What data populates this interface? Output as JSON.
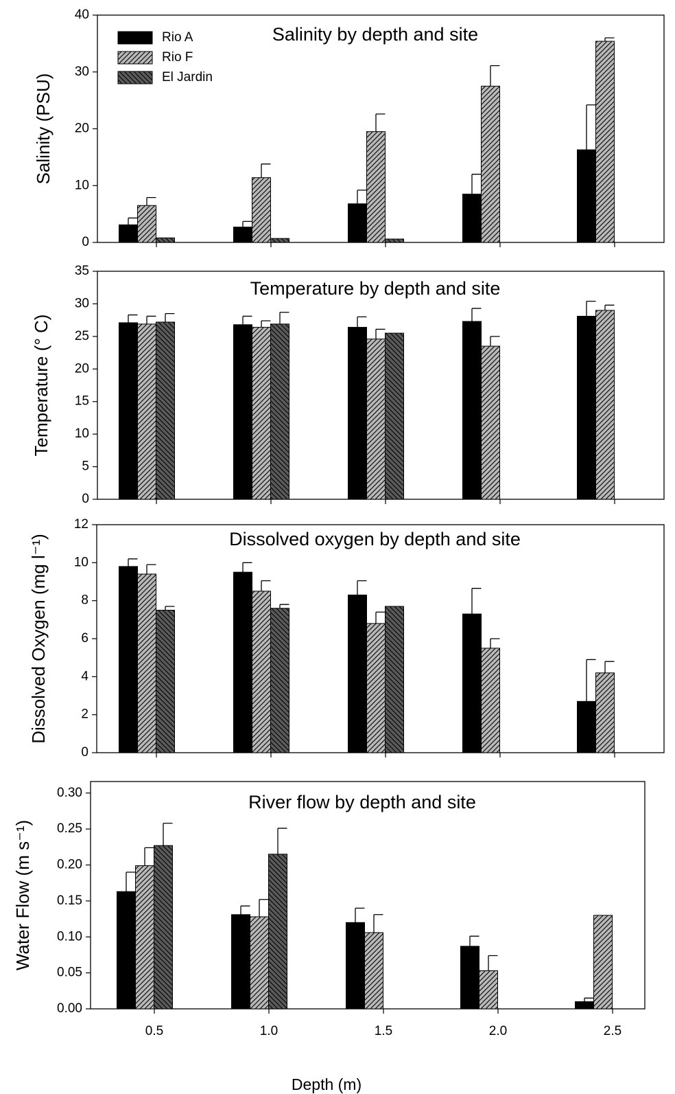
{
  "chart_data": [
    {
      "type": "bar",
      "title": "Salinity by depth and site",
      "ylabel": "Salinity (PSU)",
      "categories": [
        null,
        null,
        null,
        null,
        null
      ],
      "series": [
        {
          "name": "Rio A",
          "color": "#000000",
          "hatch": "none",
          "values": [
            3.1,
            2.7,
            6.8,
            8.5,
            16.3
          ],
          "errors": [
            1.2,
            1.0,
            2.4,
            3.5,
            7.9
          ]
        },
        {
          "name": "Rio F",
          "color": "#b8b8b8",
          "hatch": "/",
          "values": [
            6.5,
            11.4,
            19.5,
            27.5,
            35.4
          ],
          "errors": [
            1.4,
            2.4,
            3.1,
            3.6,
            0.6
          ]
        },
        {
          "name": "El Jardin",
          "color": "#5a5a5a",
          "hatch": "\\",
          "values": [
            0.8,
            0.7,
            0.6,
            null,
            null
          ],
          "errors": [
            null,
            null,
            null,
            null,
            null
          ]
        }
      ],
      "ylim": [
        0,
        40
      ],
      "yticks": [
        0,
        10,
        20,
        30,
        40
      ],
      "legend": "upper left"
    },
    {
      "type": "bar",
      "title": "Temperature by depth and site",
      "ylabel": "Temperature (° C)",
      "categories": [
        null,
        null,
        null,
        null,
        null
      ],
      "series": [
        {
          "color": "#000000",
          "hatch": "none",
          "values": [
            27.1,
            26.8,
            26.4,
            27.3,
            28.1
          ],
          "errors": [
            1.2,
            1.3,
            1.6,
            2.0,
            2.3
          ]
        },
        {
          "color": "#b8b8b8",
          "hatch": "/",
          "values": [
            26.9,
            26.4,
            24.6,
            23.5,
            29.0
          ],
          "errors": [
            1.2,
            1.0,
            1.5,
            1.5,
            0.8
          ]
        },
        {
          "color": "#5a5a5a",
          "hatch": "\\",
          "values": [
            27.2,
            26.9,
            25.5,
            null,
            null
          ],
          "errors": [
            1.3,
            1.8,
            null,
            null,
            null
          ]
        }
      ],
      "ylim": [
        0,
        35
      ],
      "yticks": [
        0,
        5,
        10,
        15,
        20,
        25,
        30,
        35
      ]
    },
    {
      "type": "bar",
      "title": "Dissolved oxygen by depth and site",
      "ylabel": "Dissolved Oxygen (mg l⁻¹)",
      "categories": [
        null,
        null,
        null,
        null,
        null
      ],
      "series": [
        {
          "color": "#000000",
          "hatch": "none",
          "values": [
            9.8,
            9.5,
            8.3,
            7.3,
            2.7
          ],
          "errors": [
            0.4,
            0.5,
            0.75,
            1.35,
            2.2
          ]
        },
        {
          "color": "#b8b8b8",
          "hatch": "/",
          "values": [
            9.4,
            8.5,
            6.8,
            5.5,
            4.2
          ],
          "errors": [
            0.5,
            0.55,
            0.6,
            0.5,
            0.6
          ]
        },
        {
          "color": "#5a5a5a",
          "hatch": "\\",
          "values": [
            7.5,
            7.6,
            7.7,
            null,
            null
          ],
          "errors": [
            0.2,
            0.2,
            null,
            null,
            null
          ]
        }
      ],
      "ylim": [
        0,
        12
      ],
      "yticks": [
        0,
        2,
        4,
        6,
        8,
        10,
        12
      ]
    },
    {
      "type": "bar",
      "title": "River flow by depth and site",
      "ylabel": "Water Flow (m s⁻¹)",
      "xlabel": "Depth (m)",
      "categories": [
        "0.5",
        "1.0",
        "1.5",
        "2.0",
        "2.5"
      ],
      "series": [
        {
          "color": "#000000",
          "hatch": "none",
          "values": [
            0.163,
            0.131,
            0.12,
            0.087,
            0.01
          ],
          "errors": [
            0.027,
            0.012,
            0.02,
            0.014,
            0.005
          ]
        },
        {
          "color": "#b8b8b8",
          "hatch": "/",
          "values": [
            0.199,
            0.128,
            0.106,
            0.053,
            0.13
          ],
          "errors": [
            0.025,
            0.024,
            0.025,
            0.021,
            null
          ]
        },
        {
          "color": "#5a5a5a",
          "hatch": "\\",
          "values": [
            0.227,
            0.215,
            null,
            null,
            null
          ],
          "errors": [
            0.031,
            0.036,
            null,
            null,
            null
          ]
        }
      ],
      "ylim": [
        0,
        0.316
      ],
      "yticks": [
        {
          "value": 0,
          "label": "0.00"
        },
        {
          "value": 0.05,
          "label": "0.05"
        },
        {
          "value": 0.1,
          "label": "0.10"
        },
        {
          "value": 0.15,
          "label": "0.15"
        },
        {
          "value": 0.2,
          "label": "0.20"
        },
        {
          "value": 0.25,
          "label": "0.25"
        },
        {
          "value": 0.3,
          "label": "0.30"
        }
      ]
    }
  ]
}
